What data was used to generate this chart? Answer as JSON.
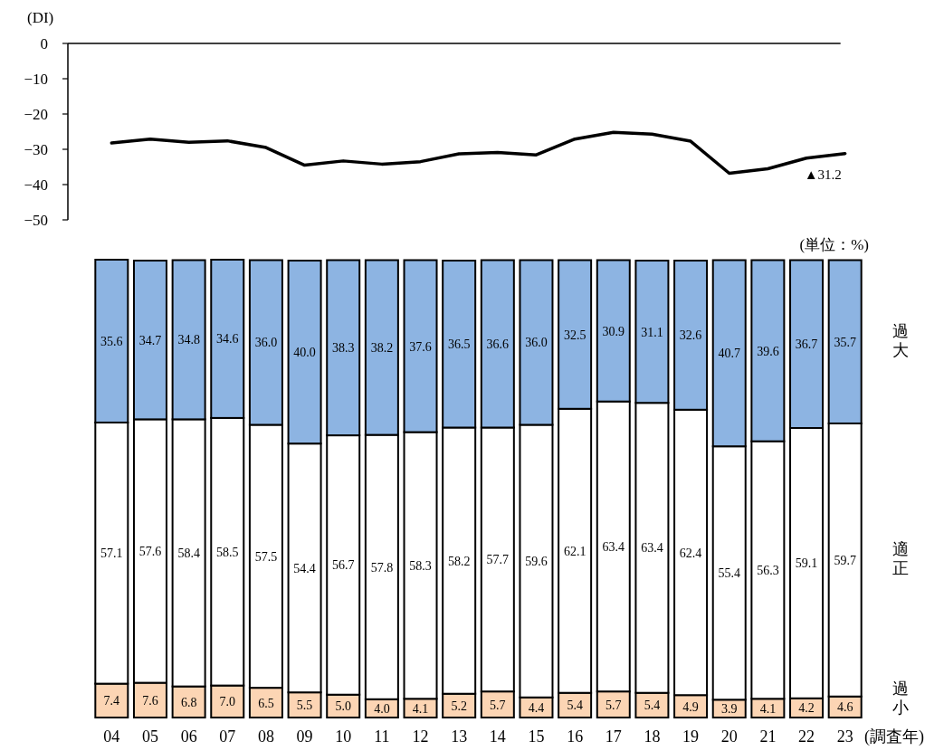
{
  "chart_data": [
    {
      "type": "line",
      "ylabel": "(DI)",
      "categories": [
        "04",
        "05",
        "06",
        "07",
        "08",
        "09",
        "10",
        "11",
        "12",
        "13",
        "14",
        "15",
        "16",
        "17",
        "18",
        "19",
        "20",
        "21",
        "22",
        "23"
      ],
      "series": [
        {
          "color": "#000000",
          "values": [
            -28.2,
            -27.1,
            -28.0,
            -27.6,
            -29.5,
            -34.5,
            -33.3,
            -34.2,
            -33.5,
            -31.3,
            -30.9,
            -31.6,
            -27.1,
            -25.2,
            -25.7,
            -27.7,
            -36.8,
            -35.5,
            -32.5,
            -31.2
          ]
        }
      ],
      "ylim": [
        -50,
        0
      ],
      "yticks": [
        0,
        -10,
        -20,
        -30,
        -40,
        -50
      ],
      "tick_labels": "y",
      "ref_lines": [
        {
          "axis": "y",
          "value": 0
        }
      ],
      "annotations": [
        {
          "text": "▲31.2",
          "x": "23",
          "y": -31.2
        }
      ]
    },
    {
      "type": "bar",
      "stacked": true,
      "xlabel": "(調査年)",
      "categories": [
        "04",
        "05",
        "06",
        "07",
        "08",
        "09",
        "10",
        "11",
        "12",
        "13",
        "14",
        "15",
        "16",
        "17",
        "18",
        "19",
        "20",
        "21",
        "22",
        "23"
      ],
      "series": [
        {
          "name": "過小",
          "color": "#fcd5b4",
          "values": [
            7.4,
            7.6,
            6.8,
            7.0,
            6.5,
            5.5,
            5.0,
            4.0,
            4.1,
            5.2,
            5.7,
            4.4,
            5.4,
            5.7,
            5.4,
            4.9,
            3.9,
            4.1,
            4.2,
            4.6
          ],
          "value_labels": [
            "7.4",
            "7.6",
            "6.8",
            "7.0",
            "6.5",
            "5.5",
            "5.0",
            "4.0",
            "4.1",
            "5.2",
            "5.7",
            "4.4",
            "5.4",
            "5.7",
            "5.4",
            "4.9",
            "3.9",
            "4.1",
            "4.2",
            "4.6"
          ]
        },
        {
          "name": "適正",
          "color": "#ffffff",
          "values": [
            57.1,
            57.6,
            58.4,
            58.5,
            57.5,
            54.4,
            56.7,
            57.8,
            58.3,
            58.2,
            57.7,
            59.6,
            62.1,
            63.4,
            63.4,
            62.4,
            55.4,
            56.3,
            59.1,
            59.7
          ],
          "value_labels": [
            "57.1",
            "57.6",
            "58.4",
            "58.5",
            "57.5",
            "54.4",
            "56.7",
            "57.8",
            "58.3",
            "58.2",
            "57.7",
            "59.6",
            "62.1",
            "63.4",
            "63.4",
            "62.4",
            "55.4",
            "56.3",
            "59.1",
            "59.7"
          ]
        },
        {
          "name": "過大",
          "color": "#8db4e2",
          "values": [
            35.6,
            34.7,
            34.8,
            34.6,
            36.0,
            40.0,
            38.3,
            38.2,
            37.6,
            36.5,
            36.6,
            36.0,
            32.5,
            30.9,
            31.1,
            32.6,
            40.7,
            39.6,
            36.7,
            35.7
          ],
          "value_labels": [
            "35.6",
            "34.7",
            "34.8",
            "34.6",
            "36.0",
            "40.0",
            "38.3",
            "38.2",
            "37.6",
            "36.5",
            "36.6",
            "36.0",
            "32.5",
            "30.9",
            "31.1",
            "32.6",
            "40.7",
            "39.6",
            "36.7",
            "35.7"
          ]
        }
      ],
      "tick_labels": "x",
      "annotations": [
        "(単位：%)"
      ]
    }
  ]
}
